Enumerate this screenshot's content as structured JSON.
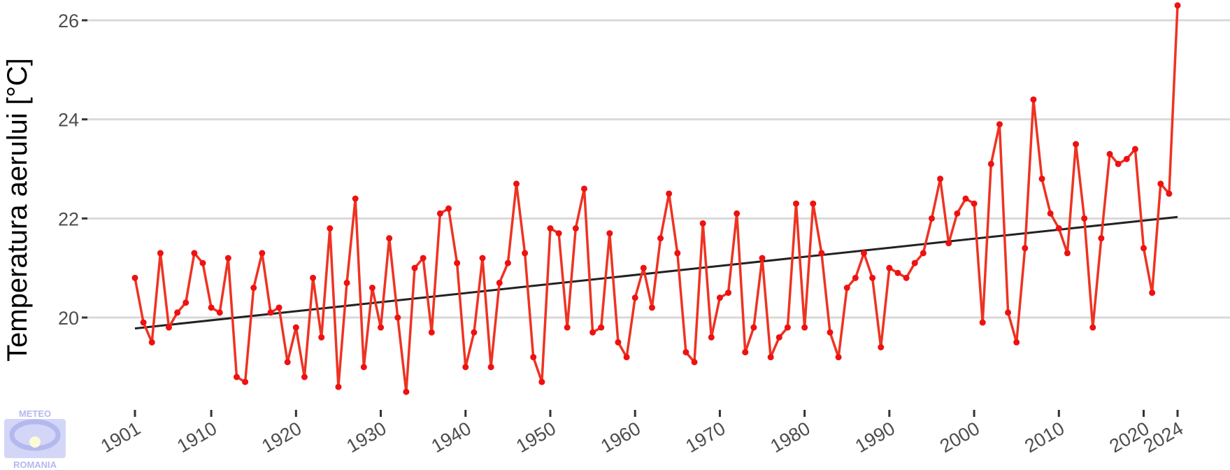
{
  "chart_data": {
    "type": "line",
    "title": "",
    "xlabel": "",
    "ylabel": "Temperatura aerului [°C]",
    "xlim": [
      1901,
      2024
    ],
    "ylim": [
      18.3,
      26.4
    ],
    "grid": "horizontal",
    "y_ticks": [
      20,
      22,
      24,
      26
    ],
    "x_ticks": [
      1901,
      1910,
      1920,
      1930,
      1940,
      1950,
      1960,
      1970,
      1980,
      1990,
      2000,
      2010,
      2020,
      2024
    ],
    "series": [
      {
        "color": "#ee3322",
        "x": [
          1901,
          1902,
          1903,
          1904,
          1905,
          1906,
          1907,
          1908,
          1909,
          1910,
          1911,
          1912,
          1913,
          1914,
          1915,
          1916,
          1917,
          1918,
          1919,
          1920,
          1921,
          1922,
          1923,
          1924,
          1925,
          1926,
          1927,
          1928,
          1929,
          1930,
          1931,
          1932,
          1933,
          1934,
          1935,
          1936,
          1937,
          1938,
          1939,
          1940,
          1941,
          1942,
          1943,
          1944,
          1945,
          1946,
          1947,
          1948,
          1949,
          1950,
          1951,
          1952,
          1953,
          1954,
          1955,
          1956,
          1957,
          1958,
          1959,
          1960,
          1961,
          1962,
          1963,
          1964,
          1965,
          1966,
          1967,
          1968,
          1969,
          1970,
          1971,
          1972,
          1973,
          1974,
          1975,
          1976,
          1977,
          1978,
          1979,
          1980,
          1981,
          1982,
          1983,
          1984,
          1985,
          1986,
          1987,
          1988,
          1989,
          1990,
          1991,
          1992,
          1993,
          1994,
          1995,
          1996,
          1997,
          1998,
          1999,
          2000,
          2001,
          2002,
          2003,
          2004,
          2005,
          2006,
          2007,
          2008,
          2009,
          2010,
          2011,
          2012,
          2013,
          2014,
          2015,
          2016,
          2017,
          2018,
          2019,
          2020,
          2021,
          2022,
          2023,
          2024
        ],
        "y": [
          20.8,
          19.9,
          19.5,
          21.3,
          19.8,
          20.1,
          20.3,
          21.3,
          21.1,
          20.2,
          20.1,
          21.2,
          18.8,
          18.7,
          20.6,
          21.3,
          20.1,
          20.2,
          19.1,
          19.8,
          18.8,
          20.8,
          19.6,
          21.8,
          18.6,
          20.7,
          22.4,
          19.0,
          20.6,
          19.8,
          21.6,
          20.0,
          18.5,
          21.0,
          21.2,
          19.7,
          22.1,
          22.2,
          21.1,
          19.0,
          19.7,
          21.2,
          19.0,
          20.7,
          21.1,
          22.7,
          21.3,
          19.2,
          18.7,
          21.8,
          21.7,
          19.8,
          21.8,
          22.6,
          19.7,
          19.8,
          21.7,
          19.5,
          19.2,
          20.4,
          21.0,
          20.2,
          21.6,
          22.5,
          21.3,
          19.3,
          19.1,
          21.9,
          19.6,
          20.4,
          20.5,
          22.1,
          19.3,
          19.8,
          21.2,
          19.2,
          19.6,
          19.8,
          22.3,
          19.8,
          22.3,
          21.3,
          19.7,
          19.2,
          20.6,
          20.8,
          21.3,
          20.8,
          19.4,
          21.0,
          20.9,
          20.8,
          21.1,
          21.3,
          22.0,
          22.8,
          21.5,
          22.1,
          22.4,
          22.3,
          19.9,
          23.1,
          23.9,
          20.1,
          19.5,
          21.4,
          24.4,
          22.8,
          22.1,
          21.8,
          21.3,
          23.5,
          22.0,
          19.8,
          21.6,
          23.3,
          23.1,
          23.2,
          23.4,
          21.4,
          20.5,
          22.7,
          22.5,
          26.3
        ]
      }
    ],
    "trend": {
      "color": "#222222",
      "x": [
        1901,
        2024
      ],
      "y": [
        19.78,
        22.03
      ]
    }
  },
  "logo": {
    "top_text": "METEO",
    "bottom_text": "ROMANIA"
  }
}
